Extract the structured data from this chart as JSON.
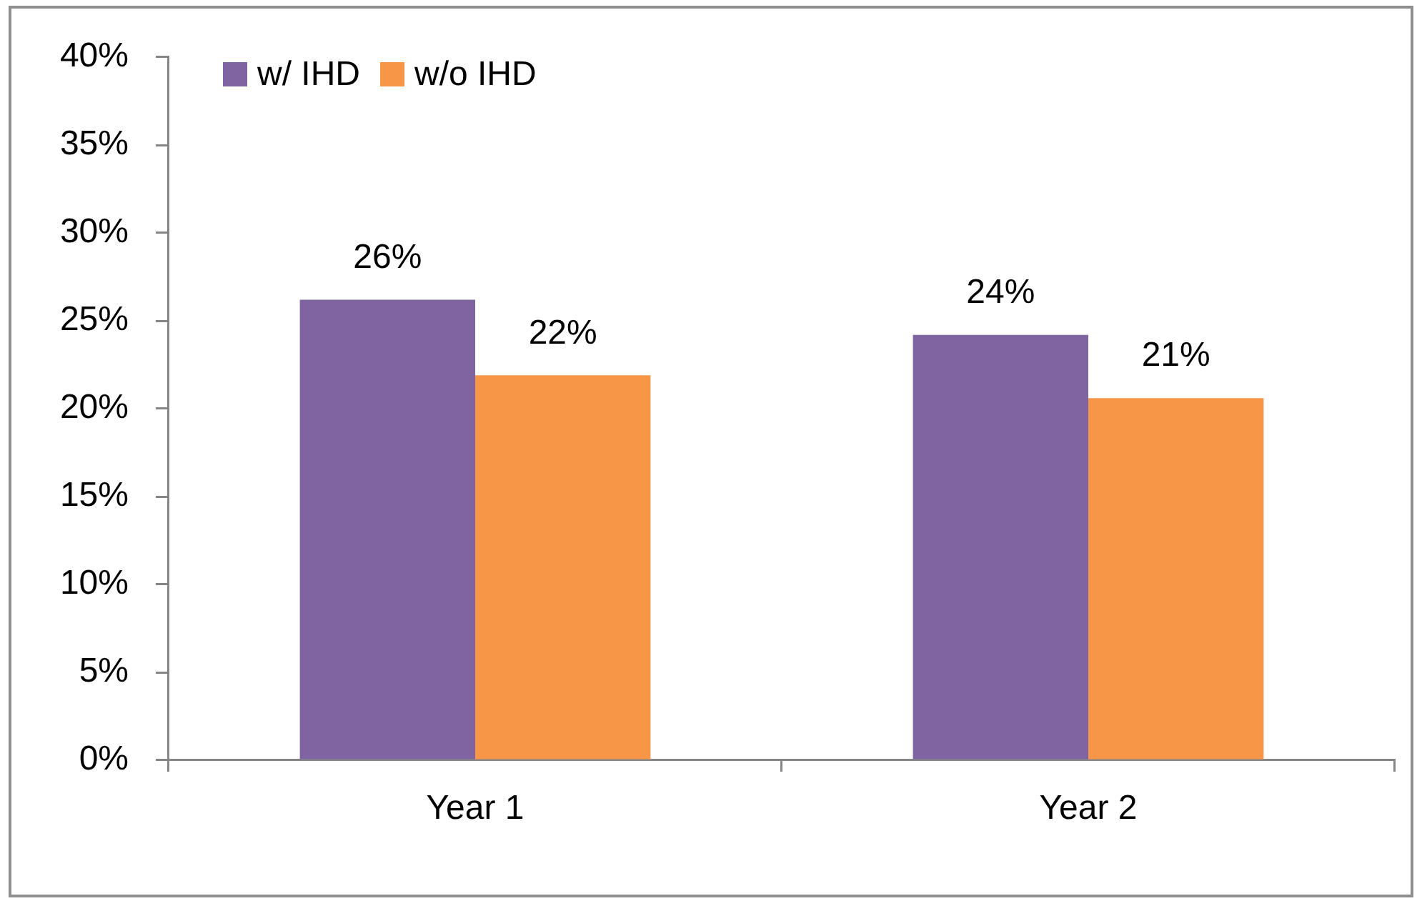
{
  "chart_data": {
    "type": "bar",
    "categories": [
      "Year 1",
      "Year 2"
    ],
    "series": [
      {
        "name": "w/ IHD",
        "color": "#8064a2",
        "values": [
          26.2,
          24.2
        ],
        "value_labels": [
          "26%",
          "24%"
        ]
      },
      {
        "name": "w/o IHD",
        "color": "#f79646",
        "values": [
          21.9,
          20.6
        ],
        "value_labels": [
          "22%",
          "21%"
        ]
      }
    ],
    "ylim": [
      0,
      40
    ],
    "yticks": [
      {
        "value": 0,
        "label": "0%"
      },
      {
        "value": 5,
        "label": "5%"
      },
      {
        "value": 10,
        "label": "10%"
      },
      {
        "value": 15,
        "label": "15%"
      },
      {
        "value": 20,
        "label": "20%"
      },
      {
        "value": 25,
        "label": "25%"
      },
      {
        "value": 30,
        "label": "30%"
      },
      {
        "value": 35,
        "label": "35%"
      },
      {
        "value": 40,
        "label": "40%"
      }
    ],
    "grid": false,
    "legend": "top left"
  }
}
